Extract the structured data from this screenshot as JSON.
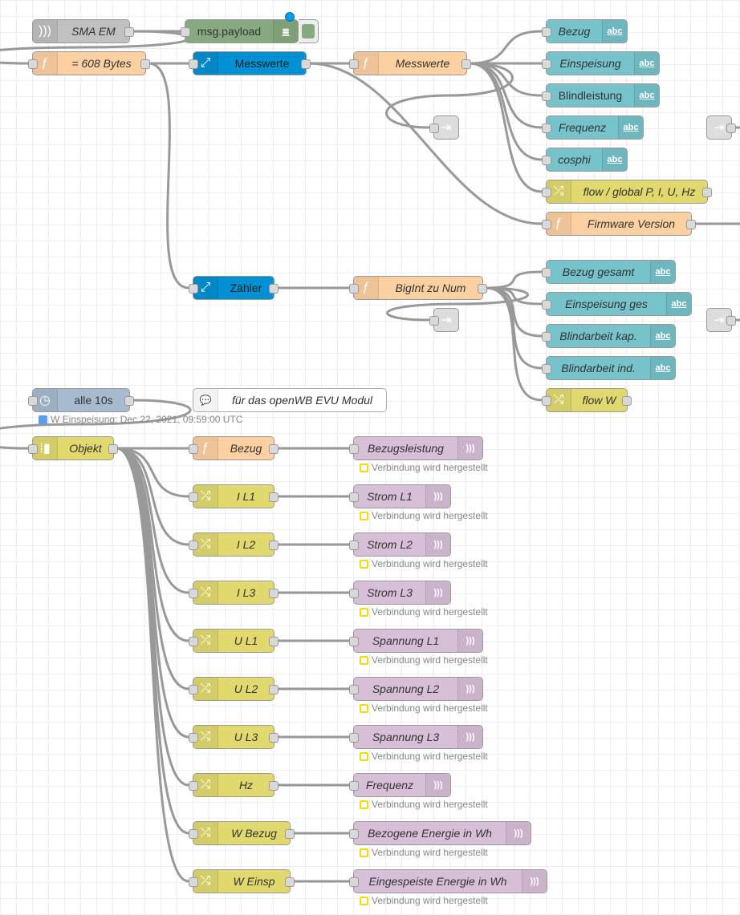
{
  "colors": {
    "function": "#fdd0a2",
    "debug": "#87a980",
    "udp": "#c0c0c0",
    "split": "#0090d4",
    "text": "#76c3cb",
    "change": "#e2d96e",
    "link": "#dddddd",
    "inject": "#a6bbcf",
    "comment": "#ffffff",
    "mqtt": "#d8bfd8"
  },
  "nodes": [
    {
      "id": "sma",
      "type": "udp",
      "icon": "udp-icon",
      "label": "SMA EM",
      "italic": true
    },
    {
      "id": "dbg",
      "type": "debug",
      "icon": "list-icon",
      "label": "msg.payload",
      "italic": false
    },
    {
      "id": "b608",
      "type": "function",
      "icon": "function-icon",
      "label": "= 608 Bytes",
      "italic": true
    },
    {
      "id": "sp1",
      "type": "split",
      "icon": "expand-arrows-icon",
      "label": "Messwerte",
      "italic": false
    },
    {
      "id": "fmw",
      "type": "function",
      "icon": "function-icon",
      "label": "Messwerte",
      "italic": true
    },
    {
      "id": "t1",
      "type": "text",
      "icon": "abc-icon",
      "label": "Bezug",
      "italic": true
    },
    {
      "id": "t2",
      "type": "text",
      "icon": "abc-icon",
      "label": "Einspeisung",
      "italic": true
    },
    {
      "id": "t3",
      "type": "text",
      "icon": "abc-icon",
      "label": "Blindleistung",
      "italic": false
    },
    {
      "id": "t4",
      "type": "text",
      "icon": "abc-icon",
      "label": "Frequenz",
      "italic": true
    },
    {
      "id": "t5",
      "type": "text",
      "icon": "abc-icon",
      "label": "cosphi",
      "italic": true
    },
    {
      "id": "c1",
      "type": "change",
      "icon": "shuffle-icon",
      "label": "flow / global P, I, U, Hz",
      "italic": true
    },
    {
      "id": "ffw",
      "type": "function",
      "icon": "function-icon",
      "label": "Firmware Version",
      "italic": true
    },
    {
      "id": "lk1",
      "type": "link",
      "icon": "link-out-icon",
      "label": ""
    },
    {
      "id": "lk2",
      "type": "link",
      "icon": "link-out-icon",
      "label": ""
    },
    {
      "id": "sp2",
      "type": "split",
      "icon": "expand-arrows-icon",
      "label": "Zähler",
      "italic": false
    },
    {
      "id": "fbi",
      "type": "function",
      "icon": "function-icon",
      "label": "BigInt zu Num",
      "italic": true
    },
    {
      "id": "t6",
      "type": "text",
      "icon": "abc-icon",
      "label": "Bezug gesamt",
      "italic": true
    },
    {
      "id": "t7",
      "type": "text",
      "icon": "abc-icon",
      "label": "Einspeisung ges",
      "italic": true
    },
    {
      "id": "t8",
      "type": "text",
      "icon": "abc-icon",
      "label": "Blindarbeit kap.",
      "italic": true
    },
    {
      "id": "t9",
      "type": "text",
      "icon": "abc-icon",
      "label": "Blindarbeit ind.",
      "italic": true
    },
    {
      "id": "c2",
      "type": "change",
      "icon": "shuffle-icon",
      "label": "flow W",
      "italic": true
    },
    {
      "id": "lk3",
      "type": "link",
      "icon": "link-out-icon",
      "label": ""
    },
    {
      "id": "lk4",
      "type": "link",
      "icon": "link-out-icon",
      "label": ""
    },
    {
      "id": "inj",
      "type": "inject",
      "icon": "timer-icon",
      "label": "alle 10s",
      "italic": false
    },
    {
      "id": "cmt",
      "type": "comment",
      "icon": "comment-icon",
      "label": "für das openWB EVU Modul",
      "italic": true
    },
    {
      "id": "obj",
      "type": "change",
      "icon": "join-icon",
      "label": "Objekt",
      "italic": true
    },
    {
      "id": "fbz",
      "type": "function",
      "icon": "function-icon",
      "label": "Bezug",
      "italic": true
    },
    {
      "id": "m0",
      "type": "mqtt",
      "icon": "mqtt-icon",
      "label": "Bezugsleistung",
      "italic": true
    },
    {
      "id": "ch1",
      "type": "change",
      "icon": "shuffle-icon",
      "label": "I L1",
      "italic": true
    },
    {
      "id": "m1",
      "type": "mqtt",
      "icon": "mqtt-icon",
      "label": "Strom L1",
      "italic": true
    },
    {
      "id": "ch2",
      "type": "change",
      "icon": "shuffle-icon",
      "label": "I L2",
      "italic": true
    },
    {
      "id": "m2",
      "type": "mqtt",
      "icon": "mqtt-icon",
      "label": "Strom L2",
      "italic": true
    },
    {
      "id": "ch3",
      "type": "change",
      "icon": "shuffle-icon",
      "label": "I L3",
      "italic": true
    },
    {
      "id": "m3",
      "type": "mqtt",
      "icon": "mqtt-icon",
      "label": "Strom L3",
      "italic": true
    },
    {
      "id": "ch4",
      "type": "change",
      "icon": "shuffle-icon",
      "label": "U L1",
      "italic": true
    },
    {
      "id": "m4",
      "type": "mqtt",
      "icon": "mqtt-icon",
      "label": "Spannung L1",
      "italic": true
    },
    {
      "id": "ch5",
      "type": "change",
      "icon": "shuffle-icon",
      "label": "U L2",
      "italic": true
    },
    {
      "id": "m5",
      "type": "mqtt",
      "icon": "mqtt-icon",
      "label": "Spannung L2",
      "italic": true
    },
    {
      "id": "ch6",
      "type": "change",
      "icon": "shuffle-icon",
      "label": "U L3",
      "italic": true
    },
    {
      "id": "m6",
      "type": "mqtt",
      "icon": "mqtt-icon",
      "label": "Spannung L3",
      "italic": true
    },
    {
      "id": "ch7",
      "type": "change",
      "icon": "shuffle-icon",
      "label": "Hz",
      "italic": true
    },
    {
      "id": "m7",
      "type": "mqtt",
      "icon": "mqtt-icon",
      "label": "Frequenz",
      "italic": true
    },
    {
      "id": "ch8",
      "type": "change",
      "icon": "shuffle-icon",
      "label": "W Bezug",
      "italic": true
    },
    {
      "id": "m8",
      "type": "mqtt",
      "icon": "mqtt-icon",
      "label": "Bezogene Energie in Wh",
      "italic": true
    },
    {
      "id": "ch9",
      "type": "change",
      "icon": "shuffle-icon",
      "label": "W Einsp",
      "italic": true
    },
    {
      "id": "m9",
      "type": "mqtt",
      "icon": "mqtt-icon",
      "label": "Eingespeiste Energie in Wh",
      "italic": true
    }
  ],
  "inject_status": "W Einspeisung: Dec 22, 2021, 09:59:00 UTC",
  "mqtt_status": "Verbindung wird hergestellt"
}
